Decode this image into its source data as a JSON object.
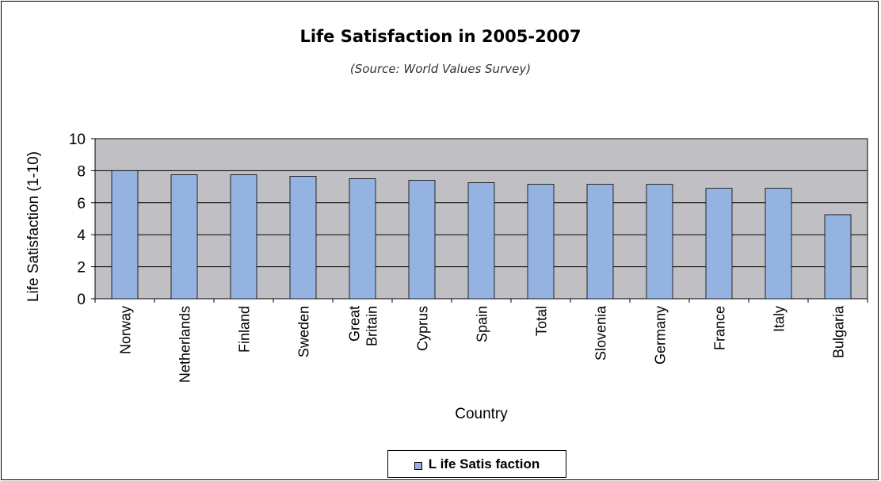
{
  "chart_data": {
    "type": "bar",
    "title": "Life Satisfaction in 2005-2007",
    "subtitle": "(Source: World Values Survey)",
    "xlabel": "Country",
    "ylabel": "Life Satisfaction (1-10)",
    "ylim": [
      0,
      10
    ],
    "yticks": [
      0,
      2,
      4,
      6,
      8,
      10
    ],
    "grid": true,
    "legend_position": "bottom",
    "categories": [
      "Norway",
      "Netherlands",
      "Finland",
      "Sweden",
      "Great Britain",
      "Cyprus",
      "Spain",
      "Total",
      "Slovenia",
      "Germany",
      "France",
      "Italy",
      "Bulgaria"
    ],
    "category_lines": [
      [
        "Norway"
      ],
      [
        "Netherlands"
      ],
      [
        "Finland"
      ],
      [
        "Sweden"
      ],
      [
        "Great",
        "Britain"
      ],
      [
        "Cyprus"
      ],
      [
        "Spain"
      ],
      [
        "Total"
      ],
      [
        "Slovenia"
      ],
      [
        "Germany"
      ],
      [
        "France"
      ],
      [
        "Italy"
      ],
      [
        "Bulgaria"
      ]
    ],
    "series": [
      {
        "name": "Life Satisfaction",
        "values": [
          8.0,
          7.75,
          7.75,
          7.65,
          7.5,
          7.4,
          7.25,
          7.15,
          7.15,
          7.15,
          6.9,
          6.9,
          5.25
        ]
      }
    ],
    "colors": {
      "bar_fill": "#95b3e0",
      "plot_bg": "#c0c0c4",
      "grid": "#000000"
    }
  },
  "legend": {
    "label": "L ife Satis faction"
  }
}
